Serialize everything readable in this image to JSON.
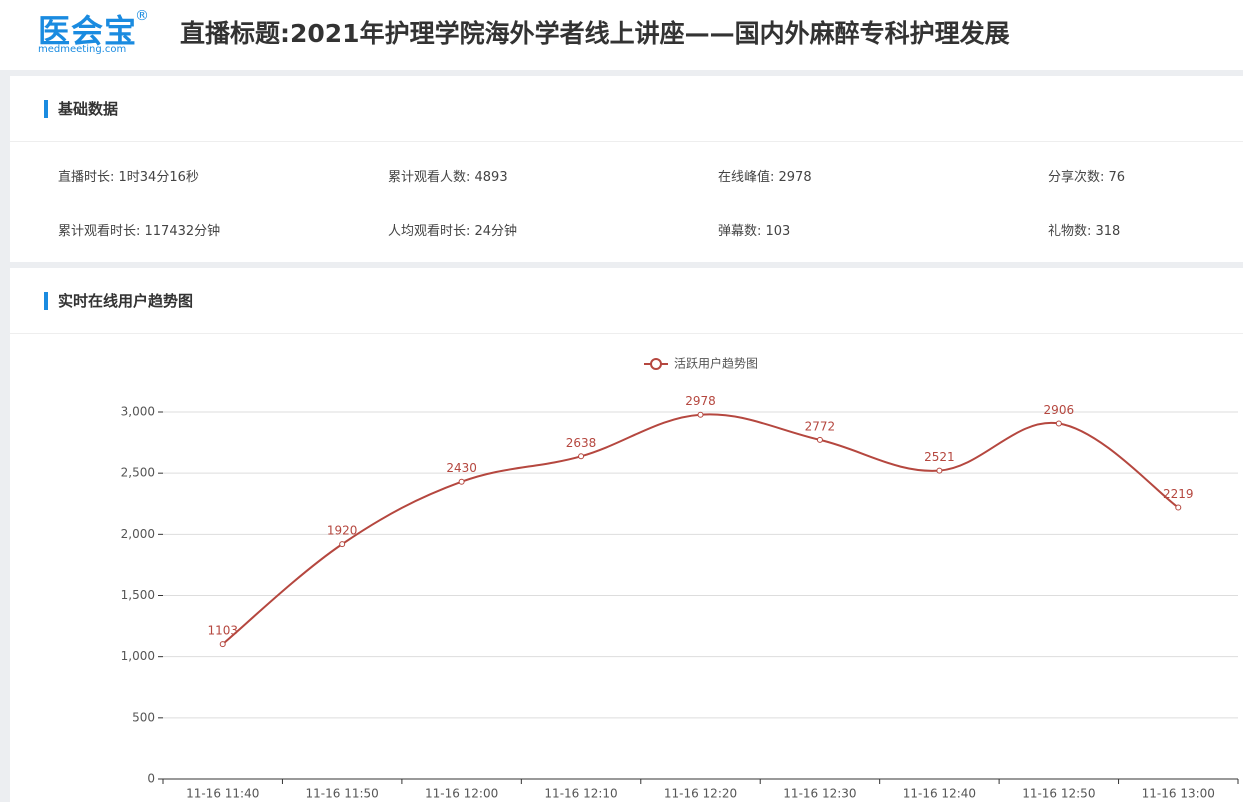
{
  "header": {
    "logo": "医会宝",
    "logo_mark": "®",
    "logo_domain": "medmeeting.com",
    "title": "直播标题:2021年护理学院海外学者线上讲座——国内外麻醉专科护理发展"
  },
  "basic": {
    "title": "基础数据",
    "items": [
      "直播时长: 1时34分16秒",
      "累计观看人数: 4893",
      "在线峰值: 2978",
      "分享次数: 76",
      "累计观看时长: 117432分钟",
      "人均观看时长: 24分钟",
      "弹幕数: 103",
      "礼物数: 318"
    ]
  },
  "trend": {
    "title": "实时在线用户趋势图"
  },
  "chart_data": {
    "type": "line",
    "categories": [
      "11-16 11:40",
      "11-16 11:50",
      "11-16 12:00",
      "11-16 12:10",
      "11-16 12:20",
      "11-16 12:30",
      "11-16 12:40",
      "11-16 12:50",
      "11-16 13:00"
    ],
    "series": [
      {
        "name": "活跃用户趋势图",
        "color": "#b5473f",
        "values": [
          1103,
          1920,
          2430,
          2638,
          2978,
          2772,
          2521,
          2906,
          2219
        ]
      }
    ],
    "ylim": [
      0,
      3000
    ],
    "yticks": [
      0,
      500,
      {
        "value": 1000,
        "label": "1,000"
      },
      {
        "value": 1500,
        "label": "1,500"
      },
      {
        "value": 2000,
        "label": "2,000"
      },
      {
        "value": 2500,
        "label": "2,500"
      },
      {
        "value": 3000,
        "label": "3,000"
      }
    ],
    "grid": true,
    "smooth": true,
    "legend": "top"
  }
}
